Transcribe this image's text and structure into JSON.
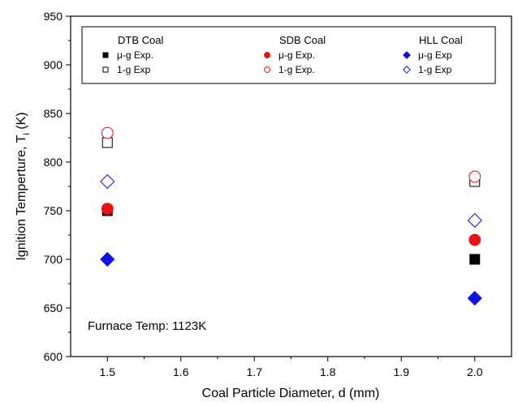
{
  "chart_data": {
    "type": "scatter",
    "title": "",
    "xlabel": "Coal Particle Diameter, d (mm)",
    "ylabel": "Ignition Temperture, T",
    "ylabel_subscript": "i",
    "ylabel_unit": " (K)",
    "xlim": [
      1.45,
      2.05
    ],
    "ylim": [
      600,
      950
    ],
    "xticks": [
      1.5,
      1.6,
      1.7,
      1.8,
      1.9,
      2.0
    ],
    "xtick_labels": [
      "1.5",
      "1.6",
      "1.7",
      "1.8",
      "1.9",
      "2.0"
    ],
    "yticks": [
      600,
      650,
      700,
      750,
      800,
      850,
      900,
      950
    ],
    "ytick_labels": [
      "600",
      "650",
      "700",
      "750",
      "800",
      "850",
      "900",
      "950"
    ],
    "grid": false,
    "legend_position": "top",
    "annotation": "Furnace Temp: 1123K",
    "groups": [
      {
        "name": "DTB Coal",
        "series": [
          {
            "name": "μ-g Exp.",
            "marker": "square",
            "filled": true,
            "color": "#000000",
            "x": [
              1.5,
              2.0
            ],
            "y": [
              750,
              700
            ]
          },
          {
            "name": "1-g Exp",
            "marker": "square",
            "filled": false,
            "color": "#000000",
            "x": [
              1.5,
              2.0
            ],
            "y": [
              820,
              780
            ]
          }
        ]
      },
      {
        "name": "SDB Coal",
        "series": [
          {
            "name": "μ-g Exp.",
            "marker": "circle",
            "filled": true,
            "color": "#ee1111",
            "x": [
              1.5,
              2.0
            ],
            "y": [
              752,
              720
            ]
          },
          {
            "name": "1-g Exp.",
            "marker": "circle",
            "filled": false,
            "color": "#ee1111",
            "x": [
              1.5,
              2.0
            ],
            "y": [
              830,
              785
            ]
          }
        ]
      },
      {
        "name": "HLL Coal",
        "series": [
          {
            "name": "μ-g Exp",
            "marker": "diamond",
            "filled": true,
            "color": "#1111ee",
            "x": [
              1.5,
              2.0
            ],
            "y": [
              700,
              660
            ]
          },
          {
            "name": "1-g Exp",
            "marker": "diamond",
            "filled": false,
            "color": "#1111ee",
            "x": [
              1.5,
              2.0
            ],
            "y": [
              780,
              740
            ]
          }
        ]
      }
    ]
  }
}
